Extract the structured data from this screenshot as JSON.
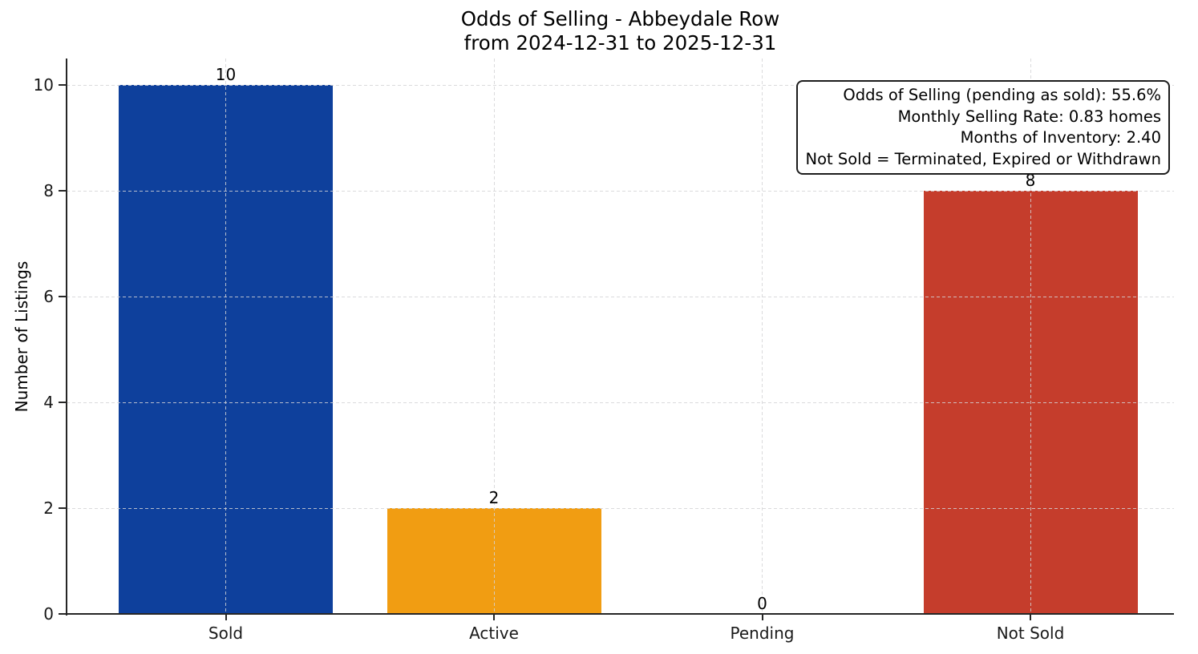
{
  "chart_data": {
    "type": "bar",
    "title": "Odds of Selling - Abbeydale Row",
    "subtitle": "from 2024-12-31 to 2025-12-31",
    "categories": [
      "Sold",
      "Active",
      "Pending",
      "Not Sold"
    ],
    "values": [
      10,
      2,
      0,
      8
    ],
    "bar_colors": [
      "#0e409c",
      "#f19d12",
      "#999999",
      "#c53d2c"
    ],
    "xlabel": "",
    "ylabel": "Number of Listings",
    "yticks": [
      0,
      2,
      4,
      6,
      8,
      10
    ],
    "ylim": [
      0,
      10.5
    ],
    "grid": true,
    "grid_style": "dashed",
    "legend_position": "none",
    "annotation": {
      "position": "top-right",
      "align": "right",
      "lines": [
        "Odds of Selling (pending as sold): 55.6%",
        "Monthly Selling Rate: 0.83 homes",
        "Months of Inventory: 2.40",
        "Not Sold = Terminated, Expired or Withdrawn"
      ]
    }
  }
}
